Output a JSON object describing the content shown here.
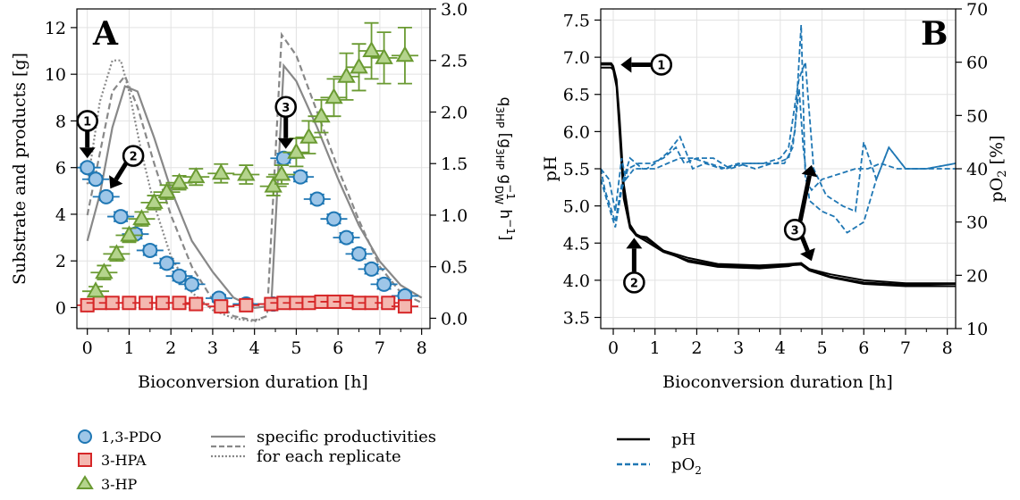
{
  "chart_data": [
    {
      "type": "scatter",
      "panel_label": "A",
      "xlabel": "Bioconversion duration [h]",
      "ylabel": "Substrate and products [g]",
      "y2label": {
        "main": "q",
        "sub1": "3HP",
        "b1": " [g",
        "sub2": "3HP",
        "b2": " g",
        "sup3": "−1",
        "sub3": "DW",
        "b3": " h",
        "sup4": "−1",
        "b4": "]"
      },
      "xlim": [
        -0.25,
        8.2
      ],
      "ylim": [
        -0.9,
        12.8
      ],
      "y2lim": [
        -0.1,
        3.0
      ],
      "xticks": [
        0,
        1,
        2,
        3,
        4,
        5,
        6,
        7,
        8
      ],
      "yticks": [
        0,
        2,
        4,
        6,
        8,
        10,
        12
      ],
      "y2ticks": [
        0.0,
        0.5,
        1.0,
        1.5,
        2.0,
        2.5,
        3.0
      ],
      "y2ticklabels": [
        "0.0",
        "0.5",
        "1.0",
        "1.5",
        "2.0",
        "2.5",
        "3.0"
      ],
      "grid": true,
      "series": [
        {
          "name": "1,3-PDO",
          "marker": "circle",
          "color": "#1f77b4",
          "fill": "#9ec6e8",
          "x": [
            0,
            0.2,
            0.45,
            0.8,
            1.15,
            1.5,
            1.9,
            2.2,
            2.5,
            3.15,
            3.8,
            4.45,
            4.7,
            5.1,
            5.5,
            5.9,
            6.2,
            6.5,
            6.8,
            7.1,
            7.6
          ],
          "y": [
            6.0,
            5.5,
            4.75,
            3.9,
            3.15,
            2.45,
            1.9,
            1.35,
            1.0,
            0.4,
            0.15,
            0.15,
            6.4,
            5.6,
            4.65,
            3.8,
            3.0,
            2.3,
            1.65,
            1.0,
            0.5
          ],
          "err": [
            0.15,
            0.15,
            0.15,
            0.2,
            0.2,
            0.2,
            0.2,
            0.2,
            0.2,
            0.15,
            0.15,
            0.15,
            0.2,
            0.2,
            0.2,
            0.2,
            0.2,
            0.2,
            0.2,
            0.2,
            0.15
          ]
        },
        {
          "name": "3-HPA",
          "marker": "square",
          "color": "#d62728",
          "fill": "#f4b8b0",
          "x": [
            0,
            0.3,
            0.6,
            1.0,
            1.4,
            1.8,
            2.2,
            2.6,
            3.2,
            3.8,
            4.4,
            4.7,
            5.0,
            5.3,
            5.6,
            5.9,
            6.2,
            6.5,
            6.8,
            7.2,
            7.6
          ],
          "y": [
            0.1,
            0.2,
            0.2,
            0.2,
            0.2,
            0.2,
            0.2,
            0.15,
            0.05,
            0.1,
            0.15,
            0.2,
            0.2,
            0.2,
            0.25,
            0.25,
            0.25,
            0.2,
            0.2,
            0.2,
            0.05
          ],
          "err": [
            0.2,
            0.2,
            0.2,
            0.2,
            0.2,
            0.2,
            0.2,
            0.2,
            0.2,
            0.2,
            0.2,
            0.2,
            0.2,
            0.2,
            0.2,
            0.2,
            0.2,
            0.2,
            0.2,
            0.2,
            0.2
          ]
        },
        {
          "name": "3-HP",
          "marker": "triangle",
          "color": "#6a9a32",
          "fill": "#b4d48c",
          "x": [
            0.2,
            0.4,
            0.7,
            1.0,
            1.3,
            1.6,
            1.9,
            2.2,
            2.6,
            3.2,
            3.8,
            4.45,
            4.65,
            5.0,
            5.3,
            5.6,
            5.9,
            6.2,
            6.5,
            6.8,
            7.1,
            7.6
          ],
          "y": [
            0.7,
            1.5,
            2.3,
            3.1,
            3.8,
            4.5,
            4.95,
            5.35,
            5.6,
            5.75,
            5.7,
            5.2,
            5.7,
            6.65,
            7.3,
            8.2,
            9.0,
            9.9,
            10.3,
            11.0,
            10.7,
            10.8
          ],
          "err": [
            0.2,
            0.3,
            0.3,
            0.3,
            0.3,
            0.3,
            0.3,
            0.3,
            0.35,
            0.4,
            0.4,
            0.4,
            0.4,
            0.6,
            0.7,
            0.7,
            0.8,
            1.0,
            1.0,
            1.2,
            1.1,
            1.2
          ]
        }
      ],
      "productivity_curves": [
        {
          "style": "solid",
          "x": [
            0,
            0.3,
            0.6,
            0.9,
            1.2,
            1.6,
            2.0,
            2.5,
            3.0,
            3.5,
            4.0,
            4.4,
            4.7,
            5.0,
            5.5,
            6.0,
            6.5,
            7.0,
            7.5,
            8.0
          ],
          "y": [
            0.75,
            1.2,
            1.85,
            2.25,
            2.2,
            1.75,
            1.25,
            0.75,
            0.45,
            0.2,
            0.1,
            0.12,
            2.45,
            2.3,
            1.85,
            1.35,
            0.9,
            0.55,
            0.32,
            0.2
          ]
        },
        {
          "style": "dashed",
          "x": [
            0,
            0.3,
            0.6,
            0.9,
            1.2,
            1.6,
            2.0,
            2.5,
            3.0,
            3.5,
            4.0,
            4.3,
            4.65,
            5.0,
            5.5,
            6.0,
            6.5,
            7.0,
            7.5,
            8.0
          ],
          "y": [
            1.0,
            1.6,
            2.2,
            2.35,
            2.05,
            1.5,
            1.0,
            0.5,
            0.18,
            0.02,
            -0.02,
            0.02,
            2.75,
            2.55,
            2.0,
            1.45,
            0.95,
            0.5,
            0.25,
            0.15
          ]
        },
        {
          "style": "dotted",
          "x": [
            0,
            0.3,
            0.6,
            0.8,
            1.0,
            1.3,
            1.6,
            2.0,
            2.5,
            3.0,
            3.5,
            4.0,
            4.2
          ],
          "y": [
            1.3,
            2.1,
            2.5,
            2.5,
            2.2,
            1.6,
            1.1,
            0.6,
            0.25,
            0.08,
            0.0,
            -0.03,
            0.0
          ]
        }
      ],
      "annotations": [
        {
          "label": "1",
          "x": 0.0,
          "y": 8.0,
          "arrow_to_y": 6.4,
          "orientation": "down"
        },
        {
          "label": "2",
          "x": 1.1,
          "y": 6.5,
          "arrow_to_x": 0.55,
          "arrow_to_y": 5.1,
          "orientation": "diag"
        },
        {
          "label": "3",
          "x": 4.75,
          "y": 8.6,
          "arrow_to_y": 6.8,
          "orientation": "down"
        }
      ]
    },
    {
      "type": "line",
      "panel_label": "B",
      "xlabel": "Bioconversion duration [h]",
      "ylabel": "pH",
      "y2label": {
        "main": "pO",
        "sub": "2",
        "tail": " [%]"
      },
      "xlim": [
        -0.3,
        8.2
      ],
      "ylim": [
        3.35,
        7.65
      ],
      "y2lim": [
        10,
        70
      ],
      "xticks": [
        0,
        1,
        2,
        3,
        4,
        5,
        6,
        7,
        8
      ],
      "yticks": [
        3.5,
        4.0,
        4.5,
        5.0,
        5.5,
        6.0,
        6.5,
        7.0,
        7.5
      ],
      "yticklabels": [
        "3.5",
        "4.0",
        "4.5",
        "5.0",
        "5.5",
        "6.0",
        "6.5",
        "7.0",
        "7.5"
      ],
      "y2ticks": [
        10,
        20,
        30,
        40,
        50,
        60,
        70
      ],
      "grid": true,
      "series": [
        {
          "name": "pH",
          "style": "solid",
          "color": "#000000",
          "replicates": [
            {
              "x": [
                -0.3,
                -0.05,
                0.0,
                0.08,
                0.15,
                0.25,
                0.4,
                0.55,
                0.8,
                1.2,
                1.8,
                2.5,
                3.5,
                4.2,
                4.5,
                4.7,
                5.2,
                6.0,
                7.0,
                8.2
              ],
              "y": [
                6.92,
                6.92,
                6.88,
                6.7,
                6.2,
                5.3,
                4.75,
                4.62,
                4.55,
                4.4,
                4.3,
                4.22,
                4.2,
                4.22,
                4.23,
                4.15,
                4.08,
                4.0,
                3.96,
                3.96
              ]
            },
            {
              "x": [
                -0.3,
                -0.05,
                0.0,
                0.08,
                0.15,
                0.25,
                0.4,
                0.55,
                0.8,
                1.2,
                1.8,
                2.5,
                3.5,
                4.2,
                4.5,
                4.7,
                5.2,
                6.0,
                7.0,
                8.2
              ],
              "y": [
                6.86,
                6.86,
                6.83,
                6.6,
                6.0,
                5.1,
                4.7,
                4.6,
                4.52,
                4.38,
                4.27,
                4.2,
                4.18,
                4.2,
                4.21,
                4.13,
                4.04,
                3.95,
                3.92,
                3.92
              ]
            },
            {
              "x": [
                -0.3,
                -0.05,
                0.0,
                0.08,
                0.15,
                0.25,
                0.4,
                0.55,
                0.8,
                1.2,
                1.8,
                2.5,
                3.5,
                4.2,
                4.5,
                4.7,
                5.2,
                6.0,
                7.0,
                8.2
              ],
              "y": [
                6.9,
                6.9,
                6.86,
                6.65,
                6.1,
                5.2,
                4.72,
                4.6,
                4.58,
                4.4,
                4.25,
                4.18,
                4.16,
                4.19,
                4.23,
                4.14,
                4.05,
                3.97,
                3.94,
                3.95
              ]
            }
          ]
        },
        {
          "name": "pO₂",
          "style": "dashed",
          "color": "#1f77b4",
          "axis": "right",
          "replicates": [
            {
              "x": [
                -0.3,
                -0.1,
                0.05,
                0.2,
                0.3,
                0.5,
                0.8,
                1.0,
                1.3,
                1.6,
                1.9,
                2.2,
                2.6,
                3.0,
                3.4,
                3.8,
                4.1,
                4.3,
                4.45,
                4.55,
                4.7,
                5.0,
                5.3,
                5.6,
                6.0,
                6.3,
                6.6,
                7.0,
                7.5,
                8.2
              ],
              "y": [
                40,
                38,
                32,
                42,
                38,
                40,
                40,
                41,
                43,
                46,
                40,
                41,
                40,
                41,
                40,
                41,
                41,
                44,
                55,
                44,
                34,
                32,
                31,
                28,
                30,
                38,
                44,
                40,
                40,
                41
              ]
            },
            {
              "x": [
                -0.3,
                -0.15,
                0.05,
                0.2,
                0.35,
                0.6,
                0.9,
                1.2,
                1.5,
                1.7,
                2.0,
                2.4,
                2.8,
                3.2,
                3.6,
                4.0,
                4.2,
                4.35,
                4.45,
                4.6,
                4.8,
                5.1,
                5.5,
                5.8,
                6.0,
                6.3,
                6.6,
                7.0,
                7.5,
                8.2
              ],
              "y": [
                38,
                34,
                29,
                36,
                40,
                41,
                41,
                42,
                44,
                41,
                42,
                42,
                40,
                41,
                41,
                42,
                44,
                52,
                57,
                60,
                40,
                35,
                33,
                32,
                45,
                38,
                44,
                40,
                40,
                41
              ]
            },
            {
              "x": [
                -0.3,
                -0.2,
                0.05,
                0.2,
                0.4,
                0.7,
                1.0,
                1.3,
                1.6,
                1.9,
                2.3,
                2.7,
                3.1,
                3.5,
                3.9,
                4.2,
                4.35,
                4.5,
                4.6,
                4.75,
                5.0,
                5.4,
                5.8,
                6.1,
                6.4,
                6.8,
                7.2,
                7.6,
                8.2
              ],
              "y": [
                40,
                36,
                30,
                37,
                42,
                40,
                40,
                41,
                42,
                42,
                41,
                40,
                41,
                41,
                41,
                42,
                47,
                67,
                38,
                36,
                38,
                39,
                40,
                40,
                41,
                40,
                40,
                40,
                40
              ]
            }
          ]
        }
      ],
      "annotations": [
        {
          "label": "1",
          "x": 1.15,
          "y": 6.9,
          "arrow_to_x": 0.05,
          "arrow_to_y": 6.9,
          "orientation": "left"
        },
        {
          "label": "2",
          "x": 0.5,
          "y": 3.97,
          "arrow_to_x": 0.5,
          "arrow_to_y": 4.57,
          "orientation": "up"
        },
        {
          "label": "3",
          "x": 4.35,
          "y": 4.68,
          "orientation": "split"
        }
      ]
    }
  ],
  "legends": {
    "a": {
      "pdo": "1,3-PDO",
      "hpa": "3-HPA",
      "hp": "3-HP",
      "curves_line1": "specific productivities",
      "curves_line2": "for each replicate"
    },
    "b": {
      "ph": "pH",
      "po2_main": "pO",
      "po2_sub": "2"
    }
  }
}
